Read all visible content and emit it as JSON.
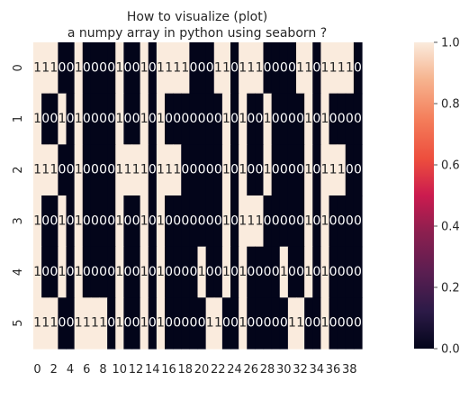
{
  "chart_data": {
    "type": "heatmap",
    "title_lines": [
      "How to visualize (plot)",
      "a numpy array in python using seaborn ?"
    ],
    "x_tick_labels": [
      "0",
      "2",
      "4",
      "6",
      "8",
      "10",
      "12",
      "14",
      "16",
      "18",
      "20",
      "22",
      "24",
      "26",
      "28",
      "30",
      "32",
      "34",
      "36",
      "38"
    ],
    "y_tick_labels": [
      "0",
      "1",
      "2",
      "3",
      "4",
      "5"
    ],
    "colorbar": {
      "min": 0.0,
      "max": 1.0,
      "ticks": [
        "0.0",
        "0.2",
        "0.4",
        "0.6",
        "0.8",
        "1.0"
      ]
    },
    "colors": {
      "low": "#03051a",
      "high": "#faebdd"
    },
    "annotate": true,
    "values": [
      [
        1,
        1,
        1,
        0,
        0,
        1,
        0,
        0,
        0,
        0,
        1,
        0,
        0,
        1,
        0,
        1,
        1,
        1,
        1,
        0,
        0,
        0,
        1,
        1,
        0,
        1,
        1,
        1,
        0,
        0,
        0,
        0,
        1,
        1,
        0,
        1,
        1,
        1,
        1,
        0
      ],
      [
        1,
        0,
        0,
        1,
        0,
        1,
        0,
        0,
        0,
        0,
        1,
        0,
        0,
        1,
        0,
        1,
        0,
        0,
        0,
        0,
        0,
        0,
        0,
        1,
        0,
        1,
        0,
        0,
        1,
        0,
        0,
        0,
        0,
        1,
        0,
        1,
        0,
        0,
        0,
        0
      ],
      [
        1,
        1,
        1,
        0,
        0,
        1,
        0,
        0,
        0,
        0,
        1,
        1,
        1,
        1,
        0,
        1,
        1,
        1,
        0,
        0,
        0,
        0,
        0,
        1,
        0,
        1,
        0,
        0,
        1,
        0,
        0,
        0,
        0,
        1,
        0,
        1,
        1,
        1,
        0,
        0
      ],
      [
        1,
        0,
        0,
        1,
        0,
        1,
        0,
        0,
        0,
        0,
        1,
        0,
        0,
        1,
        0,
        1,
        0,
        0,
        0,
        0,
        0,
        0,
        0,
        1,
        0,
        1,
        1,
        1,
        0,
        0,
        0,
        0,
        0,
        1,
        0,
        1,
        0,
        0,
        0,
        0
      ],
      [
        1,
        0,
        0,
        1,
        0,
        1,
        0,
        0,
        0,
        0,
        1,
        0,
        0,
        1,
        0,
        1,
        0,
        0,
        0,
        0,
        1,
        0,
        0,
        1,
        0,
        1,
        0,
        0,
        0,
        0,
        1,
        0,
        0,
        1,
        0,
        1,
        0,
        0,
        0,
        0
      ],
      [
        1,
        1,
        1,
        0,
        0,
        1,
        1,
        1,
        1,
        0,
        1,
        0,
        0,
        1,
        0,
        1,
        0,
        0,
        0,
        0,
        0,
        1,
        1,
        0,
        0,
        1,
        0,
        0,
        0,
        0,
        0,
        1,
        1,
        0,
        0,
        1,
        0,
        0,
        0,
        0
      ]
    ]
  }
}
